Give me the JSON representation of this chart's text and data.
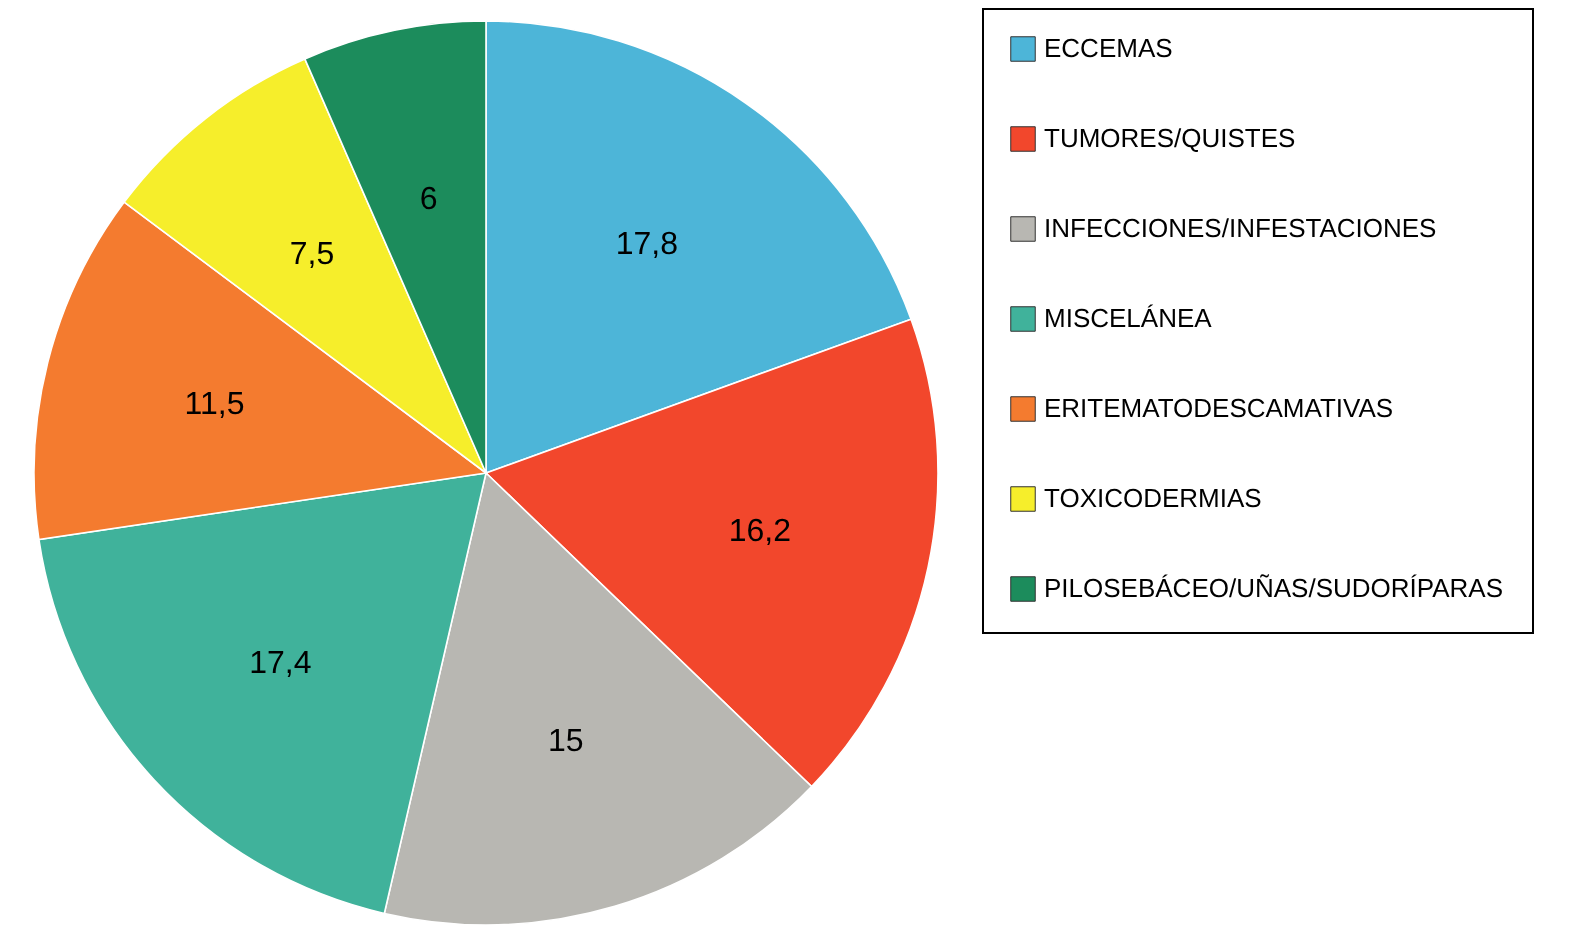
{
  "chart_data": {
    "type": "pie",
    "categories": [
      "ECCEMAS",
      "TUMORES/QUISTES",
      "INFECCIONES/INFESTACIONES",
      "MISCELÁNEA",
      "ERITEMATODESCAMATIVAS",
      "TOXICODERMIAS",
      "PILOSEBÁCEO/UÑAS/SUDORÍPARAS"
    ],
    "values": [
      17.8,
      16.2,
      15,
      17.4,
      11.5,
      7.5,
      6
    ],
    "value_labels": [
      "17,8",
      "16,2",
      "15",
      "17,4",
      "11,5",
      "7,5",
      "6"
    ],
    "colors": [
      "#4db5d8",
      "#f2472c",
      "#b8b7b2",
      "#40b29b",
      "#f47b2f",
      "#f6ee2b",
      "#1c8c5c"
    ],
    "legend": "right"
  }
}
